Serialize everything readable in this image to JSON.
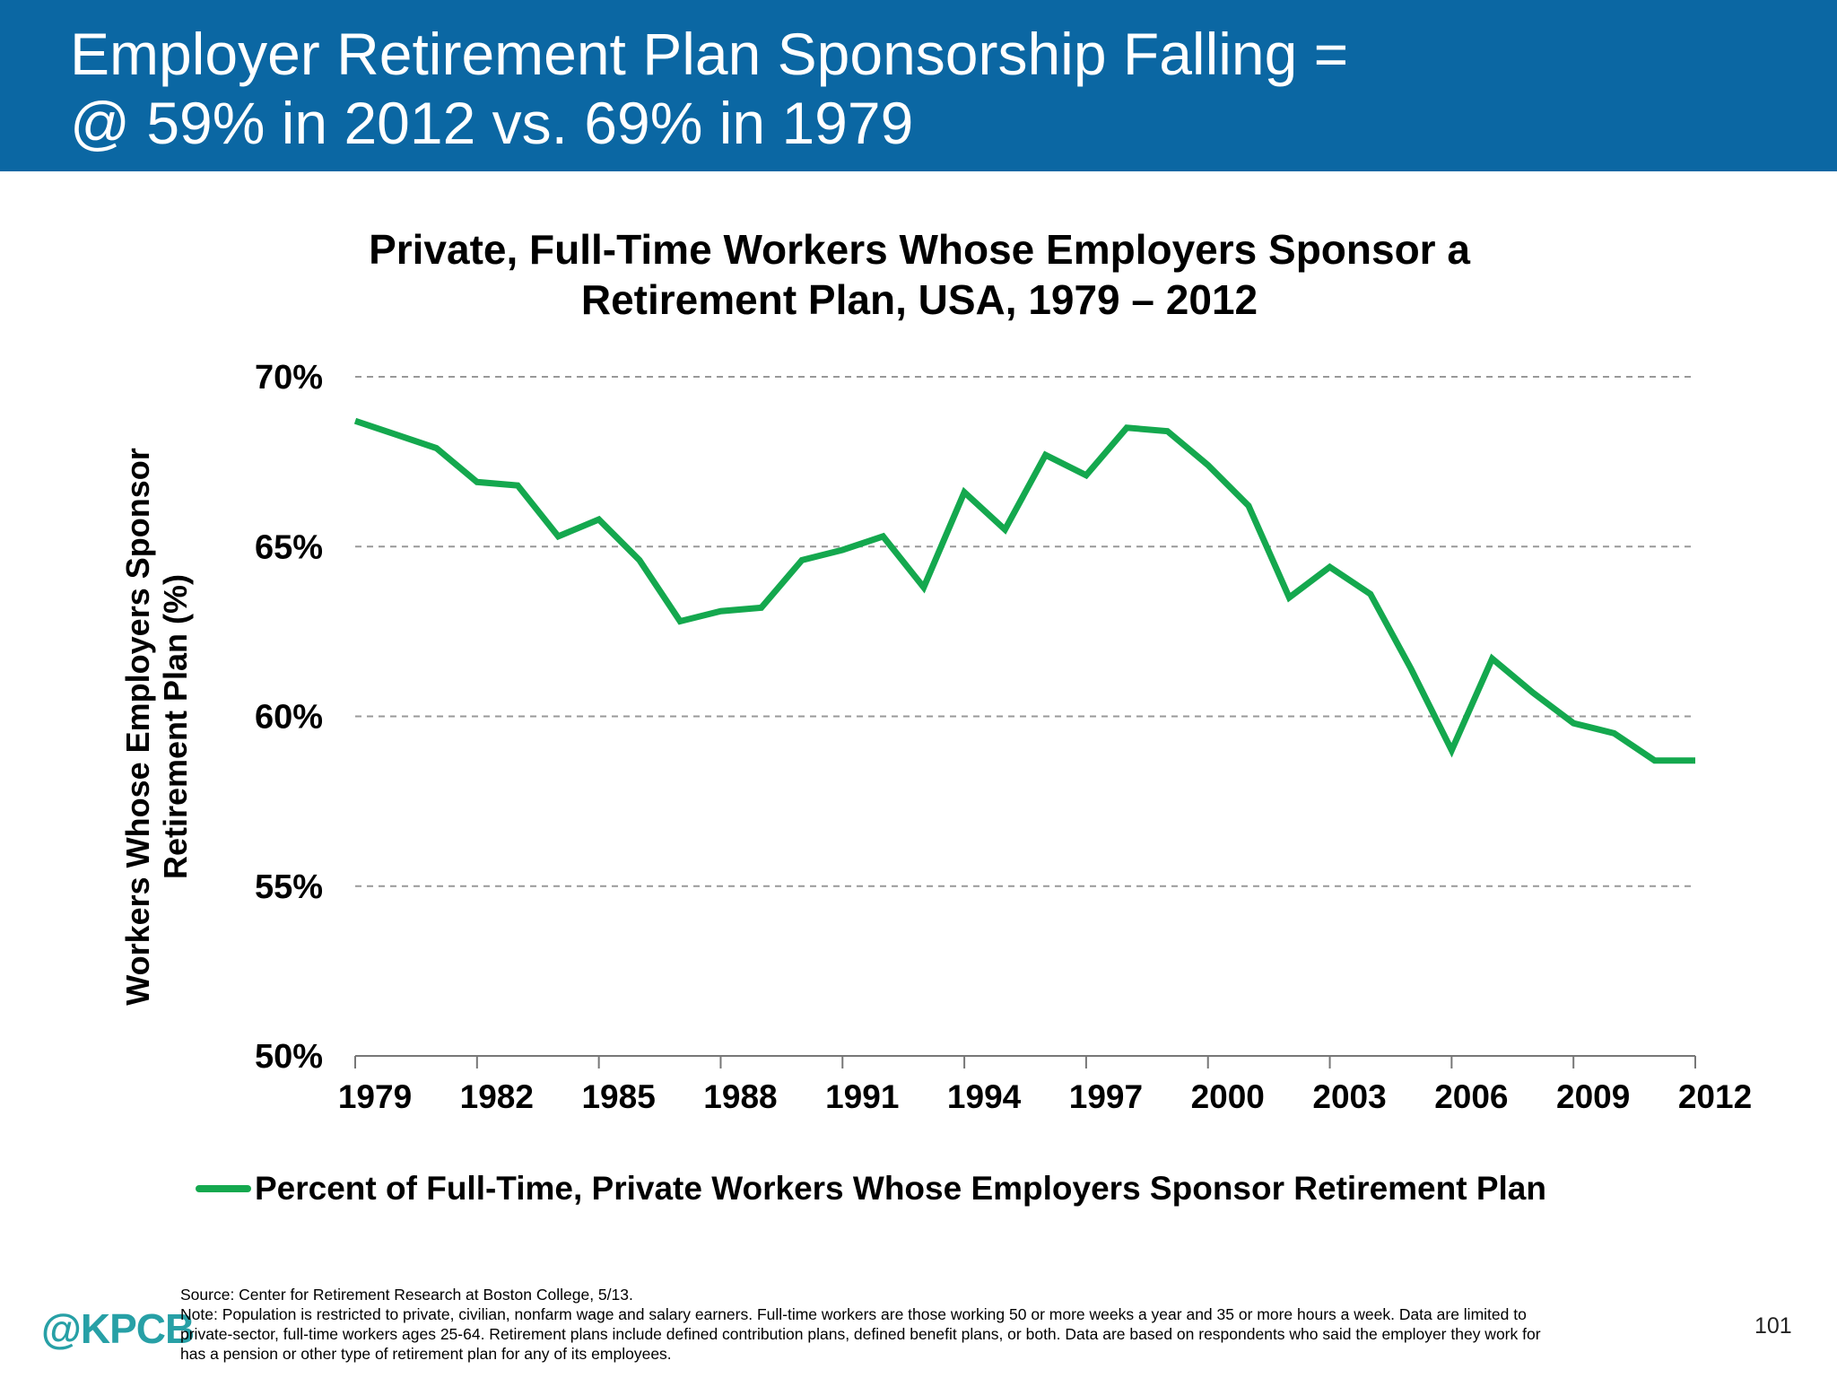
{
  "slide": {
    "title_line1": "Employer Retirement Plan Sponsorship Falling =",
    "title_line2": "@ 59% in 2012 vs. 69% in 1979",
    "brand": "@KPCB",
    "page_number": "101",
    "source": "Source: Center for Retirement Research at Boston College, 5/13.",
    "note_line1": "Note: Population is restricted to private, civilian, nonfarm wage and salary earners. Full-time workers are those working 50 or more weeks a year and 35 or more hours a week. Data are limited to",
    "note_line2": "private-sector, full-time workers ages 25-64. Retirement plans include defined contribution plans, defined benefit plans, or both. Data are based on respondents who said the employer they work for",
    "note_line3": "has a pension or other type of retirement plan for any of its employees.",
    "colors": {
      "header_bg": "#0b67a3",
      "line": "#14a84e",
      "grid": "#999999",
      "brand": "#27a0a6"
    }
  },
  "chart_data": {
    "type": "line",
    "title_line1": "Private, Full-Time Workers Whose Employers Sponsor a",
    "title_line2": "Retirement Plan, USA, 1979 – 2012",
    "ylabel_line1": "Workers Whose Employers Sponsor",
    "ylabel_line2": "Retirement Plan (%)",
    "xlabel": "",
    "ylim": [
      50,
      70
    ],
    "xlim": [
      1979,
      2012
    ],
    "y_ticks": [
      {
        "value": 50,
        "label": "50%"
      },
      {
        "value": 55,
        "label": "55%"
      },
      {
        "value": 60,
        "label": "60%"
      },
      {
        "value": 65,
        "label": "65%"
      },
      {
        "value": 70,
        "label": "70%"
      }
    ],
    "x_ticks": [
      1979,
      1982,
      1985,
      1988,
      1991,
      1994,
      1997,
      2000,
      2003,
      2006,
      2009,
      2012
    ],
    "grid": "horizontal dashed",
    "legend_position": "bottom",
    "series": [
      {
        "name": "Percent of Full-Time, Private Workers Whose Employers Sponsor Retirement Plan",
        "x": [
          1979,
          1980,
          1981,
          1982,
          1983,
          1984,
          1985,
          1986,
          1987,
          1988,
          1989,
          1990,
          1991,
          1992,
          1993,
          1994,
          1995,
          1996,
          1997,
          1998,
          1999,
          2000,
          2001,
          2002,
          2003,
          2004,
          2005,
          2006,
          2007,
          2008,
          2009,
          2010,
          2011,
          2012
        ],
        "values": [
          68.7,
          68.3,
          67.9,
          66.9,
          66.8,
          65.3,
          65.8,
          64.6,
          62.8,
          63.1,
          63.2,
          64.6,
          64.9,
          65.3,
          63.8,
          66.6,
          65.5,
          67.7,
          67.1,
          68.5,
          68.4,
          67.4,
          66.2,
          63.5,
          64.4,
          63.6,
          61.4,
          59.0,
          61.7,
          60.7,
          59.8,
          59.5,
          58.7,
          58.7
        ]
      }
    ]
  }
}
